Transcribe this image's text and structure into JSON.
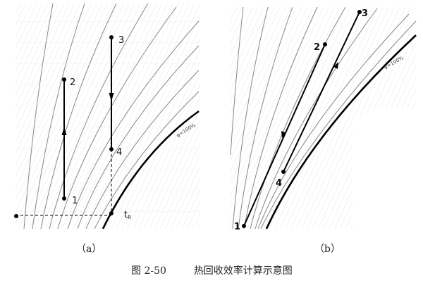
{
  "panel_a": {
    "label": "（a）",
    "points": [
      "1",
      "2",
      "3",
      "4"
    ],
    "tr_label": "t",
    "tr_sub": "R",
    "saturation_label": "φ=100%"
  },
  "panel_b": {
    "label": "（b）",
    "points": [
      "1",
      "2",
      "3",
      "4"
    ],
    "saturation_label": "φ=100%"
  },
  "caption": {
    "number": "图 2-50",
    "title": "热回收效率计算示意图"
  }
}
